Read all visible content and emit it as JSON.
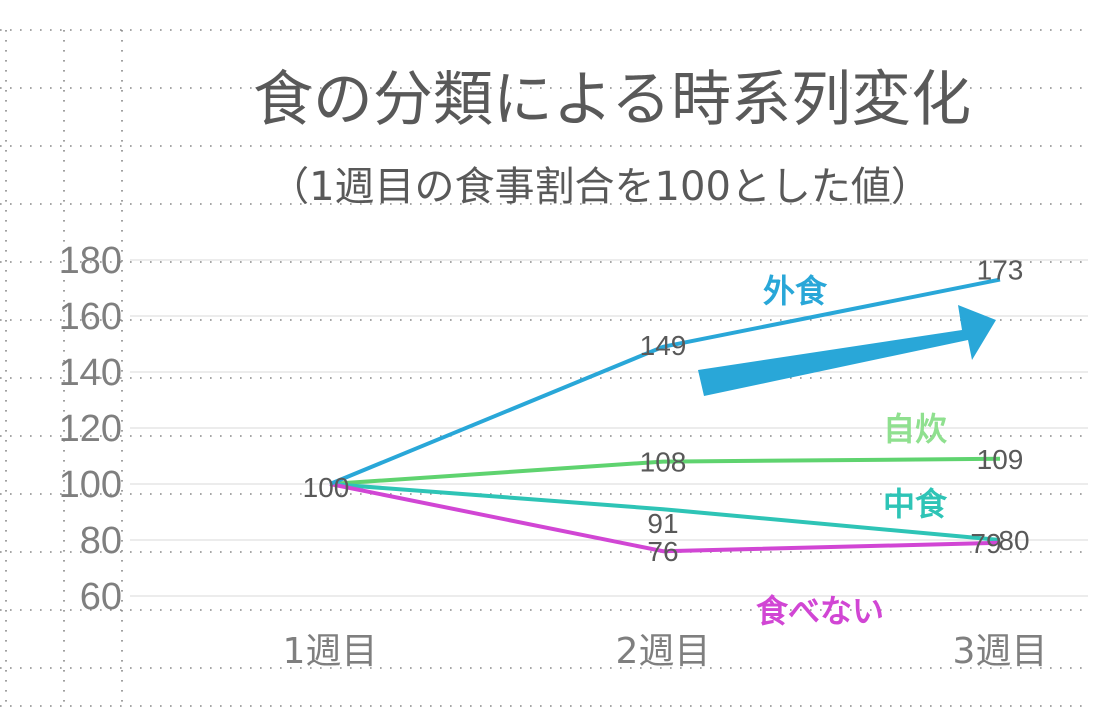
{
  "chart_data": {
    "type": "line",
    "title": "食の分類による時系列変化",
    "subtitle": "（1週目の食事割合を100とした値）",
    "categories": [
      "1週目",
      "2週目",
      "3週目"
    ],
    "ylim": [
      60,
      180
    ],
    "yticks": [
      "60",
      "80",
      "100",
      "120",
      "140",
      "160",
      "180"
    ],
    "grid": true,
    "legend": "inline labels",
    "series": [
      {
        "name": "外食",
        "values": [
          100,
          149,
          173
        ],
        "labels": [
          "",
          "149",
          "173"
        ],
        "color": "#29a7d8"
      },
      {
        "name": "自炊",
        "values": [
          100,
          108,
          109
        ],
        "labels": [
          "100",
          "108",
          "109"
        ],
        "color": "#5fd36f",
        "name_color": "#8fe08f"
      },
      {
        "name": "中食",
        "values": [
          100,
          91,
          80
        ],
        "labels": [
          "",
          "91",
          "80"
        ],
        "color": "#2ec4b6"
      },
      {
        "name": "食べない",
        "values": [
          100,
          76,
          79
        ],
        "labels": [
          "",
          "76",
          "79"
        ],
        "color": "#d146d4"
      }
    ],
    "annotations": [
      {
        "type": "arrow",
        "shape": "block-arrow",
        "color": "#29a7d8",
        "meaning": "upward trend of 外食"
      }
    ]
  }
}
